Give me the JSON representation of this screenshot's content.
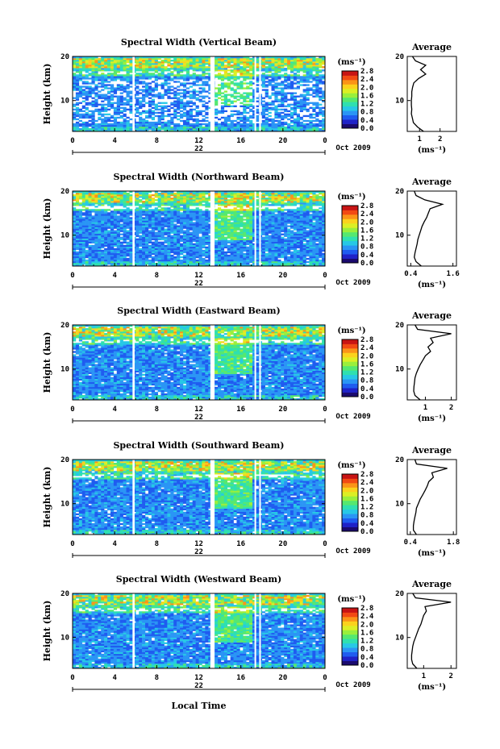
{
  "figure": {
    "xaxis_label": "Local Time",
    "day_label": "22",
    "date_label": "Oct 2009"
  },
  "colorbar": {
    "unit_label": "(ms⁻¹)",
    "ticks": [
      "2.8",
      "2.4",
      "2.0",
      "1.6",
      "1.2",
      "0.8",
      "0.4",
      "0.0"
    ],
    "colors": [
      "#1a0a6e",
      "#1f22c8",
      "#1f5cf0",
      "#2a95f5",
      "#27c8e6",
      "#2fe0b0",
      "#55e870",
      "#9aef3c",
      "#dcef24",
      "#fbd21c",
      "#fb9418",
      "#f24a14",
      "#c81414"
    ]
  },
  "chart_data": [
    {
      "type": "heatmap",
      "title": "Spectral Width (Vertical Beam)",
      "ylabel": "Height (km)",
      "xlim": [
        0,
        24
      ],
      "ylim": [
        3,
        20
      ],
      "xticks": [
        "0",
        "4",
        "8",
        "12",
        "16",
        "20",
        "0"
      ],
      "yticks": [
        "20",
        "10"
      ],
      "data_gaps_hours": [
        [
          5.7,
          5.9
        ],
        [
          13.1,
          13.5
        ],
        [
          17.3,
          17.45
        ],
        [
          17.75,
          17.9
        ]
      ],
      "average_profile": {
        "title": "Average",
        "xtick_labels": [
          "1",
          "2"
        ],
        "xtick_values": [
          1,
          2
        ],
        "xlim": [
          0.4,
          2.8
        ],
        "xlabel": "(ms⁻¹)",
        "heights": [
          3,
          4,
          5,
          6,
          7,
          8,
          9,
          10,
          11,
          12,
          13,
          14,
          15,
          16,
          17,
          18,
          19,
          20
        ],
        "values": [
          1.2,
          0.9,
          0.7,
          0.65,
          0.6,
          0.62,
          0.6,
          0.6,
          0.62,
          0.62,
          0.66,
          0.72,
          0.95,
          1.3,
          1.05,
          1.3,
          0.8,
          0.65
        ]
      }
    },
    {
      "type": "heatmap",
      "title": "Spectral Width (Northward Beam)",
      "ylabel": "Height (km)",
      "xlim": [
        0,
        24
      ],
      "ylim": [
        3,
        20
      ],
      "xticks": [
        "0",
        "4",
        "8",
        "12",
        "16",
        "20",
        "0"
      ],
      "yticks": [
        "20",
        "10"
      ],
      "data_gaps_hours": [
        [
          5.7,
          5.9
        ],
        [
          13.1,
          13.5
        ],
        [
          17.3,
          17.45
        ],
        [
          17.75,
          17.9
        ]
      ],
      "average_profile": {
        "title": "Average",
        "xtick_labels": [
          "0.4",
          "1.6"
        ],
        "xtick_values": [
          0.4,
          1.6
        ],
        "xlim": [
          0.3,
          1.7
        ],
        "xlabel": "(ms⁻¹)",
        "heights": [
          3,
          4,
          5,
          6,
          7,
          8,
          9,
          10,
          11,
          12,
          13,
          14,
          15,
          16,
          17,
          18,
          19,
          20
        ],
        "values": [
          0.7,
          0.55,
          0.5,
          0.52,
          0.55,
          0.58,
          0.6,
          0.64,
          0.68,
          0.72,
          0.78,
          0.85,
          0.9,
          0.95,
          1.3,
          0.8,
          0.55,
          0.5
        ]
      }
    },
    {
      "type": "heatmap",
      "title": "Spectral Width (Eastward Beam)",
      "ylabel": "Height (km)",
      "xlim": [
        0,
        24
      ],
      "ylim": [
        3,
        20
      ],
      "xticks": [
        "0",
        "4",
        "8",
        "12",
        "16",
        "20",
        "0"
      ],
      "yticks": [
        "20",
        "10"
      ],
      "data_gaps_hours": [
        [
          5.7,
          5.9
        ],
        [
          13.1,
          13.5
        ],
        [
          17.3,
          17.45
        ],
        [
          17.75,
          17.9
        ]
      ],
      "average_profile": {
        "title": "Average",
        "xtick_labels": [
          "1",
          "2"
        ],
        "xtick_values": [
          1,
          2
        ],
        "xlim": [
          0.3,
          2.2
        ],
        "xlabel": "(ms⁻¹)",
        "heights": [
          3,
          4,
          5,
          6,
          7,
          8,
          9,
          10,
          11,
          12,
          13,
          14,
          15,
          16,
          17,
          18,
          19,
          20
        ],
        "values": [
          0.8,
          0.6,
          0.55,
          0.56,
          0.58,
          0.6,
          0.65,
          0.72,
          0.8,
          0.9,
          1.0,
          1.2,
          1.1,
          1.3,
          1.2,
          2.0,
          0.7,
          0.6
        ]
      }
    },
    {
      "type": "heatmap",
      "title": "Spectral Width (Southward Beam)",
      "ylabel": "Height (km)",
      "xlim": [
        0,
        24
      ],
      "ylim": [
        3,
        20
      ],
      "xticks": [
        "0",
        "4",
        "8",
        "12",
        "16",
        "20",
        "0"
      ],
      "yticks": [
        "20",
        "10"
      ],
      "data_gaps_hours": [
        [
          5.7,
          5.9
        ],
        [
          13.1,
          13.5
        ],
        [
          17.3,
          17.45
        ],
        [
          17.75,
          17.9
        ]
      ],
      "average_profile": {
        "title": "Average",
        "xtick_labels": [
          "0.4",
          "1.8"
        ],
        "xtick_values": [
          0.4,
          1.8
        ],
        "xlim": [
          0.3,
          1.9
        ],
        "xlabel": "(ms⁻¹)",
        "heights": [
          3,
          4,
          5,
          6,
          7,
          8,
          9,
          10,
          11,
          12,
          13,
          14,
          15,
          16,
          17,
          18,
          19,
          20
        ],
        "values": [
          0.6,
          0.5,
          0.5,
          0.52,
          0.55,
          0.58,
          0.6,
          0.66,
          0.72,
          0.8,
          0.88,
          0.95,
          1.0,
          1.15,
          1.1,
          1.6,
          0.6,
          0.55
        ]
      }
    },
    {
      "type": "heatmap",
      "title": "Spectral Width (Westward Beam)",
      "ylabel": "Height (km)",
      "xlim": [
        0,
        24
      ],
      "ylim": [
        3,
        20
      ],
      "xticks": [
        "0",
        "4",
        "8",
        "12",
        "16",
        "20",
        "0"
      ],
      "yticks": [
        "20",
        "10"
      ],
      "data_gaps_hours": [
        [
          5.7,
          5.9
        ],
        [
          13.1,
          13.5
        ],
        [
          17.3,
          17.45
        ],
        [
          17.75,
          17.9
        ]
      ],
      "average_profile": {
        "title": "Average",
        "xtick_labels": [
          "1",
          "2"
        ],
        "xtick_values": [
          1,
          2
        ],
        "xlim": [
          0.4,
          2.2
        ],
        "xlabel": "(ms⁻¹)",
        "heights": [
          3,
          4,
          5,
          6,
          7,
          8,
          9,
          10,
          11,
          12,
          13,
          14,
          15,
          16,
          17,
          18,
          19,
          20
        ],
        "values": [
          0.75,
          0.6,
          0.56,
          0.56,
          0.58,
          0.6,
          0.64,
          0.7,
          0.76,
          0.82,
          0.9,
          0.95,
          1.0,
          1.1,
          1.05,
          2.0,
          0.7,
          0.6
        ]
      }
    }
  ]
}
